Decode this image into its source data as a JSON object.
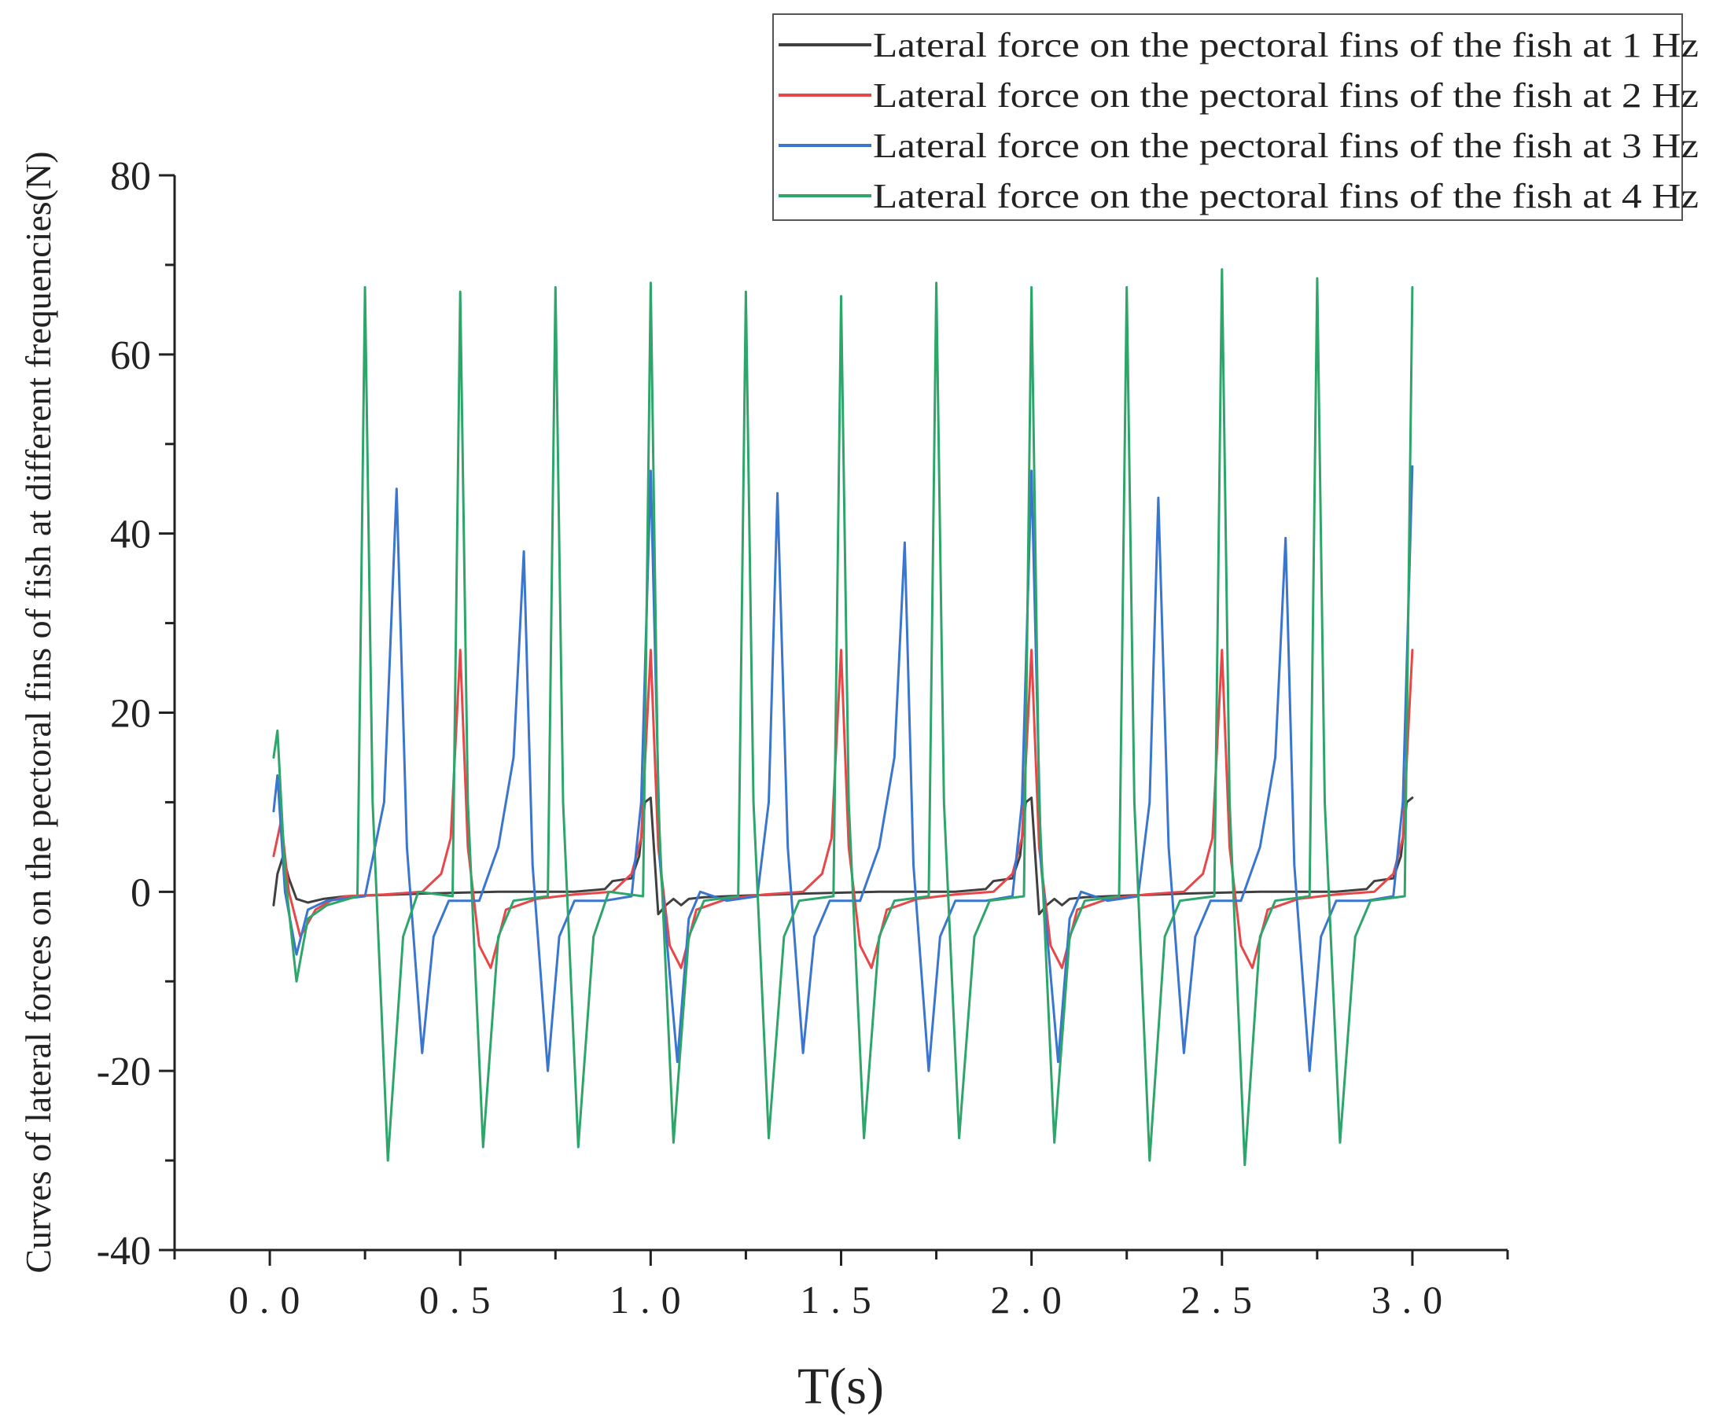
{
  "chart_data": {
    "type": "line",
    "title": "",
    "xlabel": "T(s)",
    "ylabel": "Curves of lateral forces on the pectoral fins of fish at different frequencies(N)",
    "xlim": [
      -0.25,
      3.25
    ],
    "ylim": [
      -40,
      80
    ],
    "x_ticks": [
      0.0,
      0.5,
      1.0,
      1.5,
      2.0,
      2.5,
      3.0
    ],
    "x_tick_labels": [
      "0.0",
      "0.5",
      "1.0",
      "1.5",
      "2.0",
      "2.5",
      "3.0"
    ],
    "y_ticks": [
      -40,
      -20,
      0,
      20,
      40,
      60,
      80
    ],
    "y_tick_labels": [
      "-40",
      "-20",
      "0",
      "20",
      "40",
      "60",
      "80"
    ],
    "legend_position": "top-right",
    "series": [
      {
        "name": "Lateral force on the pectoral fins of the fish at 1 Hz",
        "color": "#404040",
        "x": [
          0.01,
          0.02,
          0.035,
          0.05,
          0.07,
          0.1,
          0.14,
          0.2,
          0.4,
          0.6,
          0.8,
          0.88,
          0.9,
          0.95,
          0.97,
          0.985,
          1.0,
          1.02,
          1.04,
          1.06,
          1.08,
          1.1,
          1.14,
          1.2,
          1.4,
          1.6,
          1.8,
          1.88,
          1.9,
          1.95,
          1.97,
          1.985,
          2.0,
          2.02,
          2.04,
          2.06,
          2.08,
          2.1,
          2.14,
          2.2,
          2.4,
          2.6,
          2.8,
          2.88,
          2.9,
          2.95,
          2.97,
          2.985,
          3.0
        ],
        "values": [
          -1.5,
          2,
          4,
          1.5,
          -0.8,
          -1.2,
          -0.8,
          -0.5,
          -0.2,
          0,
          0,
          0.3,
          1.2,
          1.5,
          4,
          10,
          10.5,
          -2.5,
          -1.5,
          -0.8,
          -1.5,
          -0.8,
          -0.6,
          -0.5,
          -0.2,
          0,
          0,
          0.3,
          1.2,
          1.5,
          4,
          10,
          10.5,
          -2.5,
          -1.5,
          -0.8,
          -1.5,
          -0.8,
          -0.6,
          -0.5,
          -0.2,
          0,
          0,
          0.3,
          1.2,
          1.5,
          4,
          10,
          10.5
        ]
      },
      {
        "name": "Lateral force on the pectoral fins of the fish at 2 Hz",
        "color": "#e8474a",
        "x": [
          0.01,
          0.03,
          0.05,
          0.08,
          0.12,
          0.16,
          0.2,
          0.3,
          0.4,
          0.45,
          0.475,
          0.5,
          0.52,
          0.55,
          0.58,
          0.62,
          0.7,
          0.8,
          0.9,
          0.95,
          0.975,
          1.0,
          1.02,
          1.05,
          1.08,
          1.12,
          1.2,
          1.3,
          1.4,
          1.45,
          1.475,
          1.5,
          1.52,
          1.55,
          1.58,
          1.62,
          1.7,
          1.8,
          1.9,
          1.95,
          1.975,
          2.0,
          2.02,
          2.05,
          2.08,
          2.12,
          2.2,
          2.3,
          2.4,
          2.45,
          2.475,
          2.5,
          2.52,
          2.55,
          2.58,
          2.62,
          2.7,
          2.8,
          2.9,
          2.95,
          2.975,
          3.0
        ],
        "values": [
          4,
          8,
          0,
          -5,
          -2,
          -1,
          -0.5,
          -0.3,
          0,
          2,
          6,
          27,
          5,
          -6,
          -8.5,
          -2,
          -0.8,
          -0.3,
          0,
          2,
          6,
          27,
          5,
          -6,
          -8.5,
          -2,
          -0.8,
          -0.3,
          0,
          2,
          6,
          27,
          5,
          -6,
          -8.5,
          -2,
          -0.8,
          -0.3,
          0,
          2,
          6,
          27,
          5,
          -6,
          -8.5,
          -2,
          -0.8,
          -0.3,
          0,
          2,
          6,
          27,
          5,
          -6,
          -8.5,
          -2,
          -0.8,
          -0.3,
          0,
          2,
          6,
          27
        ]
      },
      {
        "name": "Lateral force on the pectoral fins of the fish at 3 Hz",
        "color": "#3a75d0",
        "x": [
          0.01,
          0.02,
          0.04,
          0.07,
          0.1,
          0.15,
          0.25,
          0.3,
          0.333,
          0.36,
          0.4,
          0.43,
          0.47,
          0.55,
          0.6,
          0.64,
          0.667,
          0.69,
          0.73,
          0.76,
          0.8,
          0.88,
          0.95,
          0.975,
          1.0,
          1.025,
          1.07,
          1.1,
          1.13,
          1.2,
          1.28,
          1.31,
          1.333,
          1.36,
          1.4,
          1.43,
          1.47,
          1.55,
          1.6,
          1.64,
          1.667,
          1.69,
          1.73,
          1.76,
          1.8,
          1.88,
          1.95,
          1.975,
          2.0,
          2.025,
          2.07,
          2.1,
          2.13,
          2.2,
          2.28,
          2.31,
          2.333,
          2.36,
          2.4,
          2.43,
          2.47,
          2.55,
          2.6,
          2.64,
          2.667,
          2.69,
          2.73,
          2.76,
          2.8,
          2.88,
          2.95,
          2.975,
          3.0
        ],
        "values": [
          9,
          13,
          0,
          -7,
          -2,
          -1,
          -0.5,
          10,
          45,
          5,
          -18,
          -5,
          -1,
          -1,
          5,
          15,
          38,
          3,
          -20,
          -5,
          -1,
          -1,
          -0.5,
          10,
          47,
          3,
          -19,
          -3,
          0,
          -1,
          -0.5,
          10,
          44.5,
          5,
          -18,
          -5,
          -1,
          -1,
          5,
          15,
          39,
          3,
          -20,
          -5,
          -1,
          -1,
          -0.5,
          10,
          47,
          3,
          -19,
          -3,
          0,
          -1,
          -0.5,
          10,
          44,
          5,
          -18,
          -5,
          -1,
          -1,
          5,
          15,
          39.5,
          3,
          -20,
          -5,
          -1,
          -1,
          -0.5,
          10,
          47.5
        ]
      },
      {
        "name": "Lateral force on the pectoral fins of the fish at 4 Hz",
        "color": "#2ea56a",
        "x": [
          0.01,
          0.02,
          0.04,
          0.07,
          0.1,
          0.15,
          0.23,
          0.25,
          0.27,
          0.31,
          0.35,
          0.39,
          0.48,
          0.5,
          0.52,
          0.56,
          0.6,
          0.64,
          0.73,
          0.75,
          0.77,
          0.81,
          0.85,
          0.89,
          0.98,
          1.0,
          1.02,
          1.06,
          1.1,
          1.14,
          1.23,
          1.25,
          1.27,
          1.31,
          1.35,
          1.39,
          1.48,
          1.5,
          1.52,
          1.56,
          1.6,
          1.64,
          1.73,
          1.75,
          1.77,
          1.81,
          1.85,
          1.89,
          1.98,
          2.0,
          2.02,
          2.06,
          2.1,
          2.14,
          2.23,
          2.25,
          2.27,
          2.31,
          2.35,
          2.39,
          2.48,
          2.5,
          2.52,
          2.56,
          2.6,
          2.64,
          2.73,
          2.75,
          2.77,
          2.81,
          2.85,
          2.89,
          2.98,
          3.0
        ],
        "values": [
          15,
          18,
          2,
          -10,
          -3,
          -1.5,
          -0.5,
          67.5,
          10,
          -30,
          -5,
          0,
          -0.5,
          67,
          10,
          -28.5,
          -5,
          -1,
          -0.5,
          67.5,
          10,
          -28.5,
          -5,
          0,
          -0.5,
          68,
          10,
          -28,
          -5,
          -1,
          -0.5,
          67,
          10,
          -27.5,
          -5,
          -1,
          -0.5,
          66.5,
          10,
          -27.5,
          -5,
          -1,
          -0.5,
          68,
          10,
          -27.5,
          -5,
          -1,
          -0.5,
          67.5,
          10,
          -28,
          -5,
          -1,
          -0.5,
          67.5,
          10,
          -30,
          -5,
          -1,
          -0.5,
          69.5,
          10,
          -30.5,
          -5,
          -1,
          -0.5,
          68.5,
          10,
          -28,
          -5,
          -1,
          -0.5,
          67.5
        ]
      }
    ]
  }
}
